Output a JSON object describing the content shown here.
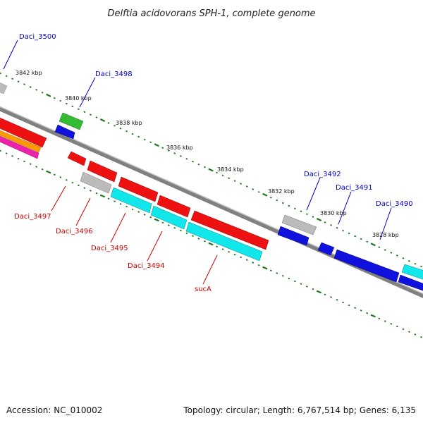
{
  "title": "Delftia acidovorans SPH-1, complete genome",
  "footer": {
    "accession": "Accession: NC_010002",
    "topology": "Topology: circular; Length: 6,767,514 bp; Genes: 6,135"
  },
  "scale_labels": [
    "3842 kbp",
    "3840 kbp",
    "3838 kbp",
    "3836 kbp",
    "3834 kbp",
    "3832 kbp",
    "3830 kbp",
    "3828 kbp"
  ],
  "gene_labels_top": [
    "Daci_3500",
    "Daci_3498",
    "Daci_3492",
    "Daci_3491",
    "Daci_3490"
  ],
  "gene_labels_bottom": [
    "Daci_3497",
    "Daci_3496",
    "Daci_3495",
    "Daci_3494",
    "sucA"
  ],
  "colors": {
    "backbone": "#808080",
    "tick": "#1a7a1a",
    "label_forward": "#0000cc",
    "label_reverse": "#cc0000",
    "red": "#ee1111",
    "cyan": "#11e6ea",
    "blue": "#1111dd",
    "grey": "#bbbbbb",
    "green": "#33bb33",
    "orange": "#ff9900",
    "magenta": "#ee22aa"
  }
}
